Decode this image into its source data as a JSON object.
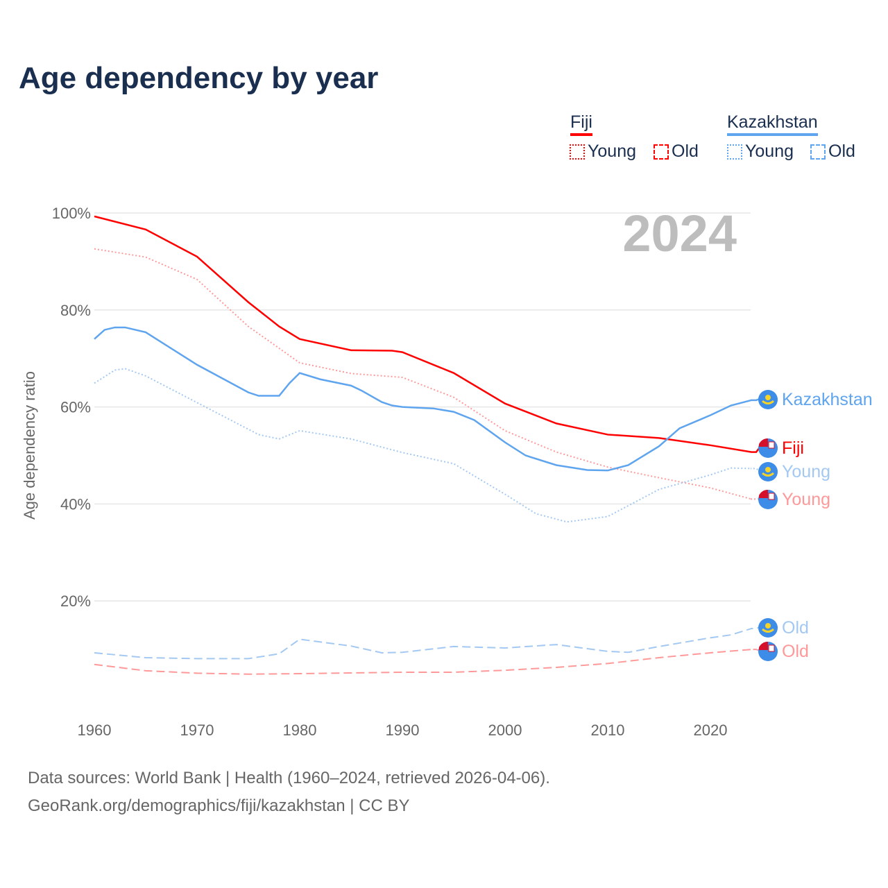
{
  "title": "Age dependency by year",
  "legend": {
    "countries": [
      {
        "name": "Fiji",
        "color": "#ff0000",
        "items": [
          "Young",
          "Old"
        ]
      },
      {
        "name": "Kazakhstan",
        "color": "#5ea4ee",
        "items": [
          "Young",
          "Old"
        ]
      }
    ]
  },
  "footer": {
    "line1": "Data sources: World Bank | Health (1960–2024, retrieved 2026-04-06).",
    "line2": "GeoRank.org/demographics/fiji/kazakhstan | CC BY"
  },
  "chart_data": {
    "type": "line",
    "title": "Age dependency by year",
    "ylabel": "Age dependency ratio",
    "xlabel": "",
    "year_label": "2024",
    "xlim": [
      1960,
      2024
    ],
    "ylim": [
      0,
      100
    ],
    "x_ticks": [
      "1960",
      "1970",
      "1980",
      "1990",
      "2000",
      "2010",
      "2020"
    ],
    "y_ticks": [
      "20%",
      "40%",
      "60%",
      "80%",
      "100%"
    ],
    "grid": true,
    "series": [
      {
        "name": "Fiji",
        "end_label": "Fiji",
        "style": "solid",
        "color": "#ff0000",
        "x": [
          1960,
          1965,
          1970,
          1975,
          1978,
          1980,
          1985,
          1989,
          1990,
          1995,
          2000,
          2005,
          2010,
          2015,
          2020,
          2024
        ],
        "y": [
          99.3,
          96.6,
          91,
          81.6,
          76.6,
          74,
          71.7,
          71.6,
          71.3,
          67,
          60.7,
          56.6,
          54.3,
          53.6,
          52.1,
          50.7
        ]
      },
      {
        "name": "Fiji Young",
        "end_label": "Young",
        "style": "dotted",
        "color": "#ff9999",
        "x": [
          1960,
          1965,
          1970,
          1975,
          1980,
          1985,
          1990,
          1995,
          2000,
          2005,
          2010,
          2015,
          2020,
          2024
        ],
        "y": [
          92.6,
          90.9,
          86.3,
          76.6,
          69.1,
          66.9,
          66.1,
          62,
          55.1,
          50.7,
          47.6,
          45.4,
          43.3,
          41
        ]
      },
      {
        "name": "Fiji Old",
        "end_label": "Old",
        "style": "dashed",
        "color": "#ff9999",
        "x": [
          1960,
          1965,
          1970,
          1975,
          1980,
          1990,
          1995,
          2000,
          2005,
          2010,
          2015,
          2020,
          2024
        ],
        "y": [
          6.9,
          5.6,
          5.1,
          4.9,
          5,
          5.3,
          5.3,
          5.7,
          6.3,
          7.1,
          8.3,
          9.3,
          10
        ]
      },
      {
        "name": "Kazakhstan",
        "end_label": "Kazakhstan",
        "style": "solid",
        "color": "#5ea4ee",
        "x": [
          1960,
          1961,
          1962,
          1963,
          1965,
          1970,
          1975,
          1976,
          1978,
          1979,
          1980,
          1982,
          1985,
          1986,
          1988,
          1989,
          1990,
          1993,
          1995,
          1997,
          2000,
          2002,
          2005,
          2008,
          2010,
          2012,
          2015,
          2017,
          2020,
          2022,
          2024
        ],
        "y": [
          74,
          75.9,
          76.4,
          76.4,
          75.4,
          68.7,
          63,
          62.3,
          62.3,
          64.9,
          67,
          65.7,
          64.4,
          63.4,
          61,
          60.3,
          60,
          59.7,
          59,
          57.3,
          52.7,
          50,
          48,
          47,
          46.9,
          48,
          51.9,
          55.6,
          58.3,
          60.3,
          61.4
        ]
      },
      {
        "name": "Kazakhstan Young",
        "end_label": "Young",
        "style": "dotted",
        "color": "#a3c8f2",
        "x": [
          1960,
          1962,
          1963,
          1965,
          1970,
          1975,
          1976,
          1978,
          1980,
          1985,
          1990,
          1995,
          2000,
          2003,
          2006,
          2010,
          2015,
          2020,
          2022,
          2024
        ],
        "y": [
          64.9,
          67.6,
          67.9,
          66.4,
          60.9,
          55.4,
          54.3,
          53.4,
          55.1,
          53.4,
          50.6,
          48.3,
          42,
          38,
          36.3,
          37.4,
          43,
          46,
          47.4,
          47.3
        ]
      },
      {
        "name": "Kazakhstan Old",
        "end_label": "Old",
        "style": "dashed",
        "color": "#a3c8f2",
        "x": [
          1960,
          1965,
          1970,
          1975,
          1978,
          1980,
          1985,
          1988,
          1990,
          1995,
          2000,
          2005,
          2010,
          2012,
          2015,
          2020,
          2022,
          2024
        ],
        "y": [
          9.3,
          8.3,
          8.1,
          8.1,
          9.1,
          12.1,
          10.7,
          9.3,
          9.4,
          10.6,
          10.3,
          11,
          9.6,
          9.4,
          10.6,
          12.4,
          13,
          14.3
        ]
      }
    ]
  }
}
